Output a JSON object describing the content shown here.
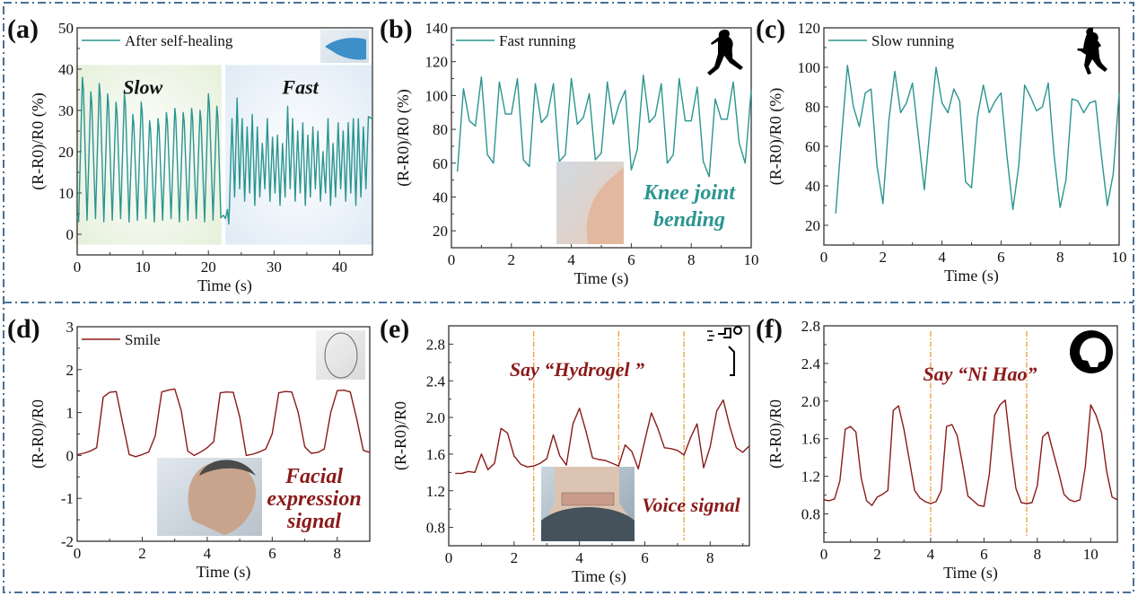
{
  "figure": {
    "frame_color": "#4a7096",
    "teal": "#2a9590",
    "dark_red": "#8b1a1a",
    "marker_orange": "#eba545"
  },
  "chart_data": [
    {
      "id": "a",
      "panel_label": "(a)",
      "type": "line",
      "legend": "After self-healing",
      "xlabel": "Time (s)",
      "ylabel": "(R-R0)/R0 (%)",
      "xlim": [
        0,
        45
      ],
      "ylim": [
        -5,
        50
      ],
      "xticks": [
        0,
        10,
        20,
        30,
        40
      ],
      "yticks": [
        0,
        10,
        20,
        30,
        40,
        50
      ],
      "color": "#2a9590",
      "annotations": [
        {
          "text": "Slow",
          "x": 10,
          "y": 34
        },
        {
          "text": "Fast",
          "x": 34,
          "y": 34
        }
      ],
      "regions": [
        {
          "name": "slow-region",
          "x0": -0.3,
          "x1": 22,
          "y0": -2.5,
          "y1": 41,
          "color": "#e4efd8"
        },
        {
          "name": "fast-region",
          "x0": 22.6,
          "x1": 45,
          "y0": -2.5,
          "y1": 41,
          "color": "#dde9f5"
        }
      ],
      "slow_segment": {
        "t_start": 0.8,
        "period": 1.28,
        "trough": 3,
        "peaks": [
          38,
          34.5,
          36.5,
          34,
          32,
          34,
          29,
          32,
          27.5,
          28,
          29.5,
          30.5,
          29.5,
          30.5,
          30,
          34,
          31
        ]
      },
      "fast_segment": {
        "t_start": 23.6,
        "period": 0.77,
        "trough": 9,
        "peaks": [
          28,
          33,
          28,
          26,
          29,
          26,
          22,
          28,
          23.5,
          24,
          22,
          31,
          28,
          25,
          27,
          24,
          26,
          25,
          20,
          28,
          22,
          27,
          25,
          27,
          28,
          28,
          26,
          28.5
        ]
      }
    },
    {
      "id": "b",
      "panel_label": "(b)",
      "type": "line",
      "legend": "Fast running",
      "xlabel": "Time (s)",
      "ylabel": "(R-R0)/R0 (%)",
      "xlim": [
        0,
        10
      ],
      "ylim": [
        10,
        140
      ],
      "xticks": [
        0,
        2,
        4,
        6,
        8,
        10
      ],
      "yticks": [
        20,
        40,
        60,
        80,
        100,
        120,
        140
      ],
      "color": "#2a9590",
      "annotation": [
        "Knee joint",
        "bending"
      ],
      "x_start": 0.2,
      "x_step": 0.2,
      "y": [
        55,
        104,
        85,
        82,
        111,
        65,
        60,
        108,
        89,
        89,
        110,
        62,
        58,
        107,
        84,
        88,
        107,
        61,
        65,
        110,
        83,
        87,
        101,
        62,
        66,
        108,
        83,
        95,
        103,
        56,
        68,
        112,
        84,
        88,
        107,
        60,
        65,
        110,
        85,
        85,
        105,
        61,
        52,
        98,
        86,
        86,
        108,
        72,
        60,
        103
      ]
    },
    {
      "id": "c",
      "panel_label": "(c)",
      "type": "line",
      "legend": "Slow running",
      "xlabel": "Time (s)",
      "ylabel": "(R-R0)/R0 (%)",
      "xlim": [
        0,
        10
      ],
      "ylim": [
        10,
        120
      ],
      "xticks": [
        0,
        2,
        4,
        6,
        8,
        10
      ],
      "yticks": [
        20,
        40,
        60,
        80,
        100,
        120
      ],
      "color": "#2a9590",
      "x_start": 0.4,
      "x_step": 0.2,
      "y": [
        26,
        65,
        101,
        80,
        70,
        87,
        89,
        50,
        31,
        73,
        98,
        77,
        82,
        92,
        65,
        38,
        70,
        100,
        82,
        77,
        89,
        83,
        42,
        39,
        75,
        91,
        77,
        83,
        87,
        55,
        28,
        50,
        91,
        85,
        78,
        80,
        92,
        55,
        29,
        43,
        84,
        83,
        77,
        82,
        83,
        55,
        30,
        46,
        87
      ]
    },
    {
      "id": "d",
      "panel_label": "(d)",
      "type": "line",
      "legend": "Smile",
      "xlabel": "Time (s)",
      "ylabel": "(R-R0)/R0",
      "xlim": [
        0,
        9
      ],
      "ylim": [
        -2,
        3
      ],
      "xticks": [
        0,
        2,
        4,
        6,
        8
      ],
      "yticks": [
        -2,
        -1,
        0,
        1,
        2,
        3
      ],
      "color": "#8b1a1a",
      "annotation": [
        "Facial",
        "expression",
        "signal"
      ],
      "x_start": 0,
      "x_step": 0.2,
      "y": [
        0.02,
        0.05,
        0.1,
        0.18,
        1.36,
        1.47,
        1.49,
        0.75,
        0.02,
        -0.03,
        0.02,
        0.08,
        0.45,
        1.48,
        1.52,
        1.55,
        1.05,
        0.1,
        0.0,
        0.08,
        0.18,
        0.32,
        1.46,
        1.48,
        1.47,
        0.9,
        0.0,
        0.03,
        0.08,
        0.15,
        0.5,
        1.46,
        1.49,
        1.48,
        1.0,
        0.2,
        0.05,
        0.07,
        0.15,
        1.0,
        1.51,
        1.52,
        1.48,
        0.85,
        0.12,
        0.07
      ]
    },
    {
      "id": "e",
      "panel_label": "(e)",
      "type": "line",
      "legend": "",
      "xlabel": "Time (s)",
      "ylabel": "(R-R0)/R0",
      "xlim": [
        0,
        9.2
      ],
      "ylim": [
        0.6,
        3.0
      ],
      "xticks": [
        0,
        2,
        4,
        6,
        8
      ],
      "yticks": [
        0.8,
        1.2,
        1.6,
        2.0,
        2.4,
        2.8
      ],
      "color": "#8b1a1a",
      "annotation_top": "Say “Hydrogel ”",
      "annotation": [
        "Voice signal"
      ],
      "vlines": [
        2.6,
        5.2,
        7.2
      ],
      "x_start": 0.2,
      "x_step": 0.2,
      "y": [
        1.39,
        1.39,
        1.41,
        1.4,
        1.6,
        1.43,
        1.5,
        1.88,
        1.83,
        1.58,
        1.49,
        1.46,
        1.47,
        1.5,
        1.55,
        1.81,
        1.58,
        1.48,
        1.93,
        2.1,
        1.85,
        1.56,
        1.54,
        1.53,
        1.5,
        1.47,
        1.7,
        1.63,
        1.44,
        1.75,
        2.05,
        1.88,
        1.67,
        1.66,
        1.64,
        1.59,
        1.78,
        1.93,
        1.45,
        1.68,
        2.07,
        2.19,
        1.9,
        1.67,
        1.62,
        1.69
      ]
    },
    {
      "id": "f",
      "panel_label": "(f)",
      "type": "line",
      "legend": "",
      "xlabel": "Time (s)",
      "ylabel": "(R-R0)/R0",
      "xlim": [
        0,
        11
      ],
      "ylim": [
        0.5,
        2.8
      ],
      "xticks": [
        0,
        2,
        4,
        6,
        8,
        10
      ],
      "yticks": [
        0.8,
        1.2,
        1.6,
        2.0,
        2.4,
        2.8
      ],
      "color": "#8b1a1a",
      "annotation_top": "Say “Ni Hao”",
      "vlines": [
        4.0,
        7.6
      ],
      "x_start": 0,
      "x_step": 0.2,
      "y": [
        0.95,
        0.94,
        0.96,
        1.15,
        1.7,
        1.73,
        1.67,
        1.18,
        0.94,
        0.89,
        0.98,
        1.01,
        1.05,
        1.9,
        1.95,
        1.7,
        1.38,
        1.05,
        0.97,
        0.93,
        0.91,
        0.93,
        1.05,
        1.73,
        1.75,
        1.63,
        1.32,
        0.99,
        0.94,
        0.89,
        0.88,
        1.22,
        1.85,
        1.96,
        2.01,
        1.5,
        1.07,
        0.92,
        0.91,
        0.92,
        1.1,
        1.62,
        1.67,
        1.45,
        1.24,
        1.01,
        0.95,
        0.93,
        0.95,
        1.3,
        1.96,
        1.85,
        1.67,
        1.25,
        0.98,
        0.95
      ]
    }
  ]
}
